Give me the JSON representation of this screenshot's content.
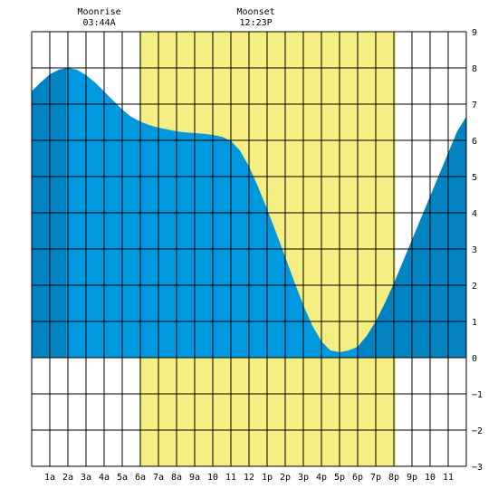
{
  "chart_data": {
    "type": "area",
    "title": "",
    "xlabel": "",
    "ylabel": "",
    "x_range": [
      0,
      24
    ],
    "ylim": [
      -3,
      9
    ],
    "y_ticks": [
      -3,
      -2,
      -1,
      0,
      1,
      2,
      3,
      4,
      5,
      6,
      7,
      8,
      9
    ],
    "x_ticks": [
      {
        "hour": 1,
        "label": "1a"
      },
      {
        "hour": 2,
        "label": "2a"
      },
      {
        "hour": 3,
        "label": "3a"
      },
      {
        "hour": 4,
        "label": "4a"
      },
      {
        "hour": 5,
        "label": "5a"
      },
      {
        "hour": 6,
        "label": "6a"
      },
      {
        "hour": 7,
        "label": "7a"
      },
      {
        "hour": 8,
        "label": "8a"
      },
      {
        "hour": 9,
        "label": "9a"
      },
      {
        "hour": 10,
        "label": "10"
      },
      {
        "hour": 11,
        "label": "11"
      },
      {
        "hour": 12,
        "label": "12"
      },
      {
        "hour": 13,
        "label": "1p"
      },
      {
        "hour": 14,
        "label": "2p"
      },
      {
        "hour": 15,
        "label": "3p"
      },
      {
        "hour": 16,
        "label": "4p"
      },
      {
        "hour": 17,
        "label": "5p"
      },
      {
        "hour": 18,
        "label": "6p"
      },
      {
        "hour": 19,
        "label": "7p"
      },
      {
        "hour": 20,
        "label": "8p"
      },
      {
        "hour": 21,
        "label": "9p"
      },
      {
        "hour": 22,
        "label": "10"
      },
      {
        "hour": 23,
        "label": "11"
      }
    ],
    "grid": true,
    "daylight": {
      "start_hour": 5.95,
      "end_hour": 20.1,
      "color": "#f5ee82"
    },
    "night_shading": [
      {
        "start_hour": 0,
        "end_hour": 1.9
      },
      {
        "start_hour": 18.0,
        "end_hour": 24
      }
    ],
    "tide_series": {
      "hours": [
        0,
        0.5,
        1,
        1.5,
        2,
        2.5,
        3,
        3.5,
        4,
        4.5,
        5,
        5.5,
        6,
        6.5,
        7,
        7.5,
        8,
        8.5,
        9,
        9.5,
        10,
        10.5,
        11,
        11.5,
        12,
        12.5,
        13,
        13.5,
        14,
        14.5,
        15,
        15.5,
        16,
        16.5,
        17,
        17.5,
        18,
        18.5,
        19,
        19.5,
        20,
        20.5,
        21,
        21.5,
        22,
        22.5,
        23,
        23.5,
        24
      ],
      "heights": [
        7.35,
        7.6,
        7.82,
        7.95,
        8.0,
        7.95,
        7.8,
        7.6,
        7.35,
        7.1,
        6.85,
        6.65,
        6.52,
        6.42,
        6.35,
        6.3,
        6.25,
        6.22,
        6.2,
        6.18,
        6.15,
        6.1,
        5.98,
        5.72,
        5.28,
        4.72,
        4.1,
        3.45,
        2.78,
        2.1,
        1.45,
        0.88,
        0.45,
        0.2,
        0.15,
        0.2,
        0.3,
        0.6,
        1.0,
        1.5,
        2.05,
        2.65,
        3.25,
        3.85,
        4.45,
        5.05,
        5.65,
        6.25,
        6.65
      ]
    },
    "annotations": [
      {
        "label": "Moonrise",
        "time": "03:44A",
        "hour": 3.73
      },
      {
        "label": "Moonset",
        "time": "12:23P",
        "hour": 12.38
      }
    ],
    "colors": {
      "water_day": "#0099e0",
      "water_night": "#0083c0",
      "grid": "#000000",
      "background": "#ffffff"
    }
  }
}
